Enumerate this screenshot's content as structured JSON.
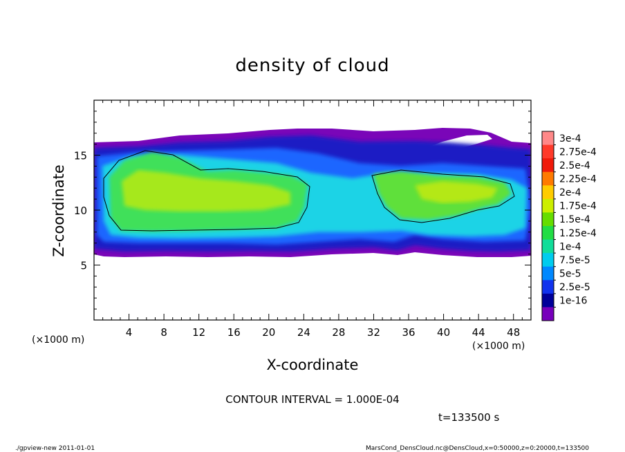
{
  "chart_data": {
    "type": "heatmap",
    "title": "density of cloud",
    "xlabel": "X-coordinate",
    "ylabel": "Z-coordinate",
    "x_unit": "(×1000 m)",
    "y_unit": "(×1000 m)",
    "xlim": [
      0,
      50
    ],
    "ylim": [
      0,
      20
    ],
    "x_ticks": [
      4,
      8,
      12,
      16,
      20,
      24,
      28,
      32,
      36,
      40,
      44,
      48
    ],
    "y_ticks": [
      5,
      10,
      15
    ],
    "colorbar": {
      "labels": [
        "3e-4",
        "2.75e-4",
        "2.5e-4",
        "2.25e-4",
        "2e-4",
        "1.75e-4",
        "1.5e-4",
        "1.25e-4",
        "1e-4",
        "7.5e-5",
        "5e-5",
        "2.5e-5",
        "1e-16"
      ],
      "colors": [
        "#ff8888",
        "#ff3a2a",
        "#f01a0a",
        "#ff7a00",
        "#ffcc00",
        "#ccee00",
        "#66dd00",
        "#22dd44",
        "#11dd99",
        "#00ccee",
        "#0088ff",
        "#1133ee",
        "#000099",
        "#7700bb"
      ]
    },
    "contour_interval": "CONTOUR INTERVAL = 1.000E-04",
    "time_label": "t=133500 s"
  },
  "footer": {
    "left": "./gpview-new  2011-01-01",
    "right": "MarsCond_DensCloud.nc@DensCloud,x=0:50000,z=0:20000,t=133500"
  }
}
